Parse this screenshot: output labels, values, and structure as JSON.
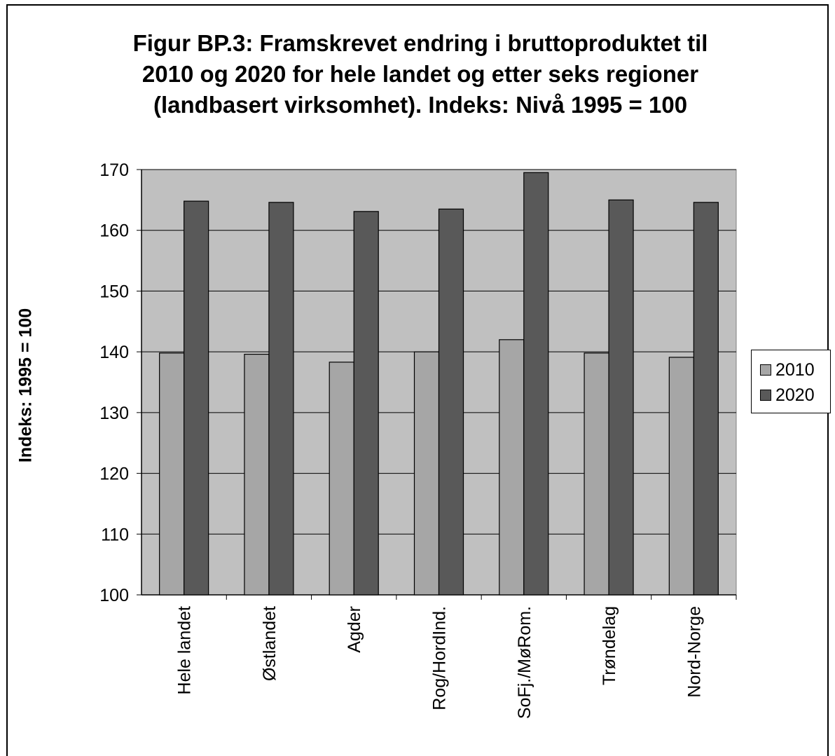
{
  "title_lines": [
    "Figur BP.3: Framskrevet endring i bruttoproduktet til",
    "2010 og 2020 for hele landet og etter seks regioner",
    "(landbasert virksomhet).  Indeks: Nivå 1995 = 100"
  ],
  "chart_data": {
    "type": "bar",
    "title": "Figur BP.3: Framskrevet endring i bruttoproduktet til 2010 og 2020 for hele landet og etter seks regioner (landbasert virksomhet).  Indeks: Nivå 1995 = 100",
    "xlabel": "",
    "ylabel": "Indeks: 1995 = 100",
    "ylim": [
      100,
      170
    ],
    "yticks": [
      100,
      110,
      120,
      130,
      140,
      150,
      160,
      170
    ],
    "categories": [
      "Hele landet",
      "Østlandet",
      "Agder",
      "Rog/HordInd.",
      "SoFj./MøRom.",
      "Trøndelag",
      "Nord-Norge"
    ],
    "series": [
      {
        "name": "2010",
        "color": "#a6a6a6",
        "values": [
          139.8,
          139.6,
          138.3,
          140.0,
          142.0,
          139.8,
          139.1
        ]
      },
      {
        "name": "2020",
        "color": "#595959",
        "values": [
          164.8,
          164.6,
          163.1,
          163.5,
          169.5,
          165.0,
          164.6
        ]
      }
    ],
    "plot_background": "#c0c0c0",
    "grid": true,
    "legend": "right"
  }
}
